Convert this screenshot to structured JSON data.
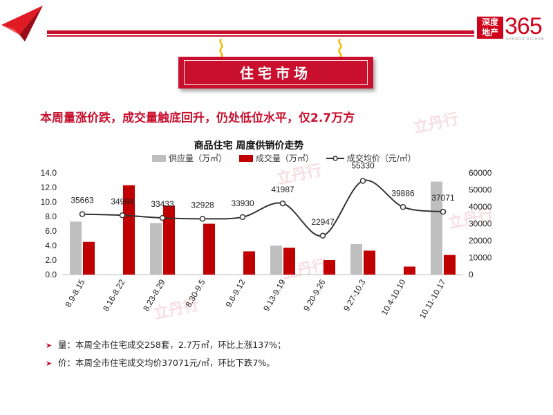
{
  "header": {
    "logo_line1": "深度",
    "logo_line2": "地产",
    "logo_number": "365",
    "logo_sub": "SHENDU DICHAN"
  },
  "section_title": "住宅市场",
  "headline": "本周量涨价跌，成交量触底回升，仍处低位水平，仅2.7万方",
  "watermark": "立丹行",
  "colors": {
    "brand_red": "#c8102e",
    "supply_bar": "#bfbfbf",
    "deal_bar": "#c00000",
    "price_line": "#333333"
  },
  "chart_data": {
    "type": "bar",
    "title": "商品住宅  周度供销价走势",
    "categories": [
      "8.9-8.15",
      "8.16-8.22",
      "8.23-8.29",
      "8.30-9.5",
      "9.6-9.12",
      "9.13-9.19",
      "9.20-9.26",
      "9.27-10.3",
      "10.4-10.10",
      "10.11-10.17"
    ],
    "series": [
      {
        "name": "供应量（万㎡）",
        "type": "bar",
        "axis": "left",
        "values": [
          7.3,
          0,
          7.1,
          0,
          0,
          4.0,
          0,
          4.2,
          0,
          12.8
        ]
      },
      {
        "name": "成交量（万㎡）",
        "type": "bar",
        "axis": "left",
        "values": [
          4.5,
          12.3,
          9.5,
          7.0,
          3.2,
          3.7,
          2.0,
          3.3,
          1.1,
          2.7
        ]
      },
      {
        "name": "成交均价（元/㎡）",
        "type": "line",
        "axis": "right",
        "values": [
          35663,
          34994,
          33433,
          32928,
          33930,
          41987,
          22947,
          55330,
          39886,
          37071
        ]
      }
    ],
    "left_axis": {
      "ylim": [
        0,
        14
      ],
      "ticks": [
        "0.0",
        "2.0",
        "4.0",
        "6.0",
        "8.0",
        "10.0",
        "12.0",
        "14.0"
      ]
    },
    "right_axis": {
      "ylim": [
        0,
        60000
      ],
      "ticks": [
        "0",
        "10000",
        "20000",
        "30000",
        "40000",
        "50000",
        "60000"
      ]
    },
    "data_labels": [
      "35663",
      "34994",
      "33433",
      "32928",
      "33930",
      "41987",
      "22947",
      "55330",
      "39886",
      "37071"
    ],
    "grid": false,
    "legend_position": "top"
  },
  "notes": [
    {
      "bullet": "➤",
      "text": "量：本周全市住宅成交258套，2.7万㎡，环比上涨137%；"
    },
    {
      "bullet": "➤",
      "text": "价：本周全市住宅成交均价37071元/㎡，环比下跌7%。"
    }
  ]
}
